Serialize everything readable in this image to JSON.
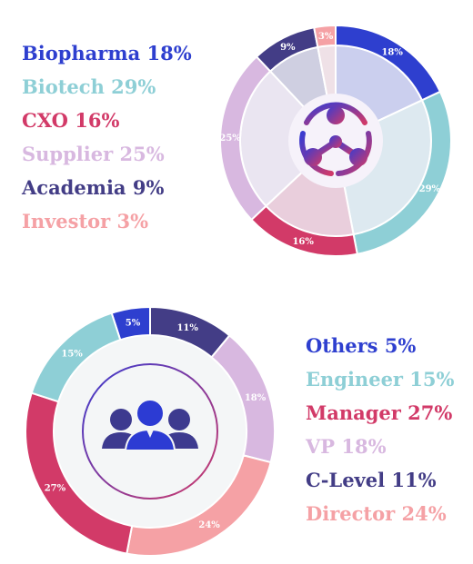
{
  "chart_data": [
    {
      "type": "pie",
      "variant": "donut",
      "categories": [
        "Biopharma",
        "Biotech",
        "CXO",
        "Supplier",
        "Academia",
        "Investor"
      ],
      "values": [
        18,
        29,
        16,
        25,
        9,
        3
      ],
      "value_labels": [
        "18%",
        "29%",
        "16%",
        "25%",
        "9%",
        "3%"
      ],
      "legend_labels": [
        "Biopharma 18%",
        "Biotech 29%",
        "CXO 16%",
        "Supplier 25%",
        "Academia 9%",
        "Investor 3%"
      ],
      "colors": [
        "#2e3fcf",
        "#8ecfd6",
        "#d23a68",
        "#d8b8e0",
        "#433d86",
        "#f5a1a5"
      ],
      "legend_position": "left",
      "center_icon": "network-molecule-icon"
    },
    {
      "type": "pie",
      "variant": "donut",
      "categories": [
        "Others",
        "Engineer",
        "Manager",
        "VP",
        "C-Level",
        "Director"
      ],
      "values": [
        5,
        15,
        27,
        18,
        11,
        24
      ],
      "value_labels": [
        "5%",
        "15%",
        "27%",
        "18%",
        "11%",
        "24%"
      ],
      "legend_labels": [
        "Others 5%",
        "Engineer 15%",
        "Manager 27%",
        "VP 18%",
        "C-Level 11%",
        "Director 24%"
      ],
      "colors": [
        "#2e3fcf",
        "#8ecfd6",
        "#d23a68",
        "#d8b8e0",
        "#433d86",
        "#f5a1a5"
      ],
      "legend_position": "right",
      "center_icon": "people-group-icon"
    }
  ]
}
